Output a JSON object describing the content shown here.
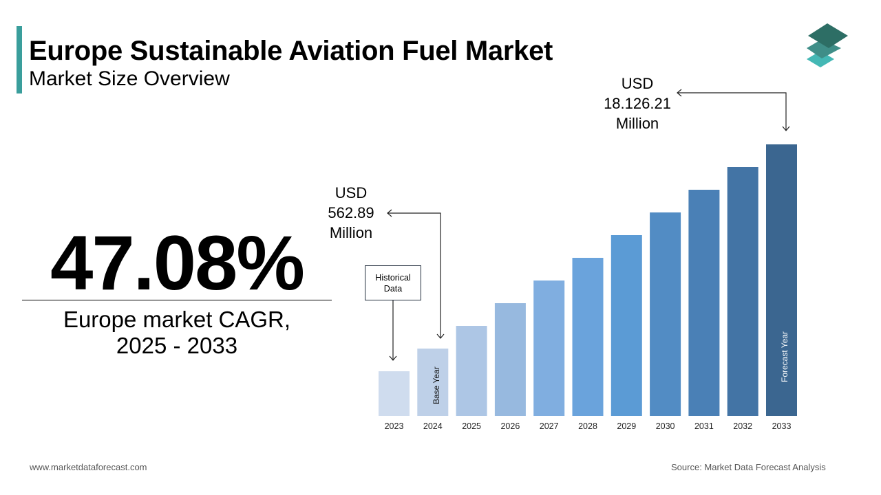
{
  "header": {
    "title": "Europe Sustainable Aviation Fuel Market",
    "subtitle": "Market Size Overview"
  },
  "headline": {
    "cagr_value": "47.08%",
    "cagr_label_line1": "Europe market CAGR,",
    "cagr_label_line2": "2025 - 2033"
  },
  "callouts": {
    "base": {
      "line1": "USD",
      "line2": "562.89",
      "line3": "Million"
    },
    "forecast": {
      "line1": "USD",
      "line2": "18.126.21",
      "line3": "Million"
    },
    "historical": {
      "line1": "Historical",
      "line2": "Data"
    }
  },
  "footer": {
    "website": "www.marketdataforecast.com",
    "source": "Source: Market Data Forecast Analysis"
  },
  "logo": {
    "icon": "stacked-layers-icon",
    "colors": [
      "#2d6e65",
      "#3f8e88",
      "#44b8b5"
    ]
  },
  "colors": {
    "accent": "#3a9e9c",
    "bars": [
      "#cfdcee",
      "#bed0e8",
      "#adc6e5",
      "#97b9df",
      "#80aee0",
      "#6aa3dc",
      "#5b9bd5",
      "#528cc4",
      "#4a80b6",
      "#4374a5",
      "#3b6690"
    ]
  },
  "chart_data": {
    "type": "bar",
    "categories": [
      "2023",
      "2024",
      "2025",
      "2026",
      "2027",
      "2028",
      "2029",
      "2030",
      "2031",
      "2032",
      "2033"
    ],
    "values": [
      null,
      562.89,
      null,
      null,
      null,
      null,
      null,
      null,
      null,
      null,
      18126.21
    ],
    "unit": "USD Million",
    "bar_annotations": {
      "2024": "Base Year",
      "2033": "Forecast Year"
    },
    "grid": false,
    "legend": "none"
  }
}
